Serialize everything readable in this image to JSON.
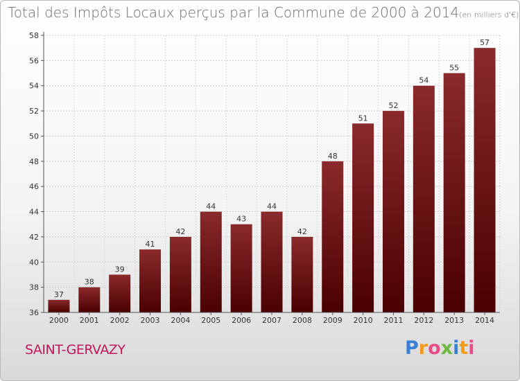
{
  "title": "Total des Impôts Locaux perçus par la Commune de 2000 à 2014",
  "title_unit": "(en milliers d'€)",
  "commune": "SAINT-GERVAZY",
  "logo": {
    "letters": [
      "P",
      "r",
      "o",
      "x",
      "i",
      "t",
      "i"
    ],
    "colors": [
      "#3a7fd5",
      "#f29a1e",
      "#e84c88",
      "#6fb83f",
      "#3a7fd5",
      "#f29a1e",
      "#e84c88"
    ]
  },
  "chart_data": {
    "type": "bar",
    "title": "Total des Impôts Locaux perçus par la Commune de 2000 à 2014",
    "xlabel": "",
    "ylabel": "",
    "categories": [
      "2000",
      "2001",
      "2002",
      "2003",
      "2004",
      "2005",
      "2006",
      "2007",
      "2008",
      "2009",
      "2010",
      "2011",
      "2012",
      "2013",
      "2014"
    ],
    "values": [
      37,
      38,
      39,
      41,
      42,
      44,
      43,
      44,
      42,
      48,
      51,
      52,
      54,
      55,
      57
    ],
    "ylim": [
      36,
      58
    ],
    "yticks": [
      36,
      38,
      40,
      42,
      44,
      46,
      48,
      50,
      52,
      54,
      56,
      58
    ],
    "grid": true,
    "bar_color": "#7a1a1c"
  }
}
